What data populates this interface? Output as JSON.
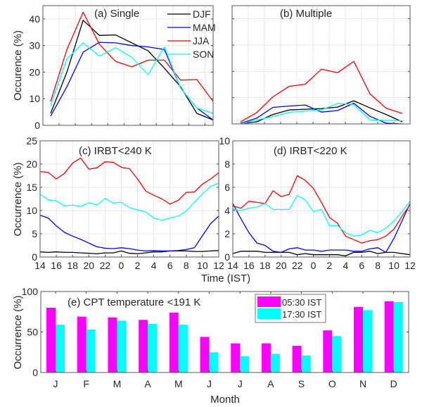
{
  "figure": {
    "xlabel_time": "Time (IST)",
    "xlabel_month": "Month"
  },
  "chart_data": [
    {
      "id": "a",
      "type": "line",
      "title": "(a) Single",
      "ylabel": "Occurence (%)",
      "ylim": [
        0,
        45
      ],
      "yticks": [
        0,
        10,
        20,
        30,
        40
      ],
      "ytick_labels": [
        "0",
        "10",
        "20",
        "30",
        "40"
      ],
      "grid": true,
      "legend": "top-right",
      "x": [
        1,
        2,
        3,
        4,
        5,
        6,
        7,
        8,
        9,
        10,
        11
      ],
      "series": [
        {
          "name": "DJF",
          "color": "#000000",
          "values": [
            4.5,
            20,
            39.5,
            33.8,
            34,
            31,
            28,
            21.5,
            14.5,
            4.5,
            2
          ]
        },
        {
          "name": "MAM",
          "color": "#0000ff",
          "values": [
            3.5,
            14.5,
            27.5,
            31.2,
            31,
            30,
            29.5,
            28.5,
            14,
            6.5,
            2
          ]
        },
        {
          "name": "JJA",
          "color": "#ff0000",
          "values": [
            9,
            28.5,
            42.5,
            30.5,
            24,
            22,
            24.5,
            24.5,
            17,
            17.2,
            9
          ]
        },
        {
          "name": "SON",
          "color": "#00ffff",
          "values": [
            7.5,
            25,
            31,
            26,
            29.2,
            25.5,
            19,
            29.5,
            14,
            6.5,
            4.5
          ]
        }
      ]
    },
    {
      "id": "b",
      "type": "line",
      "title": "(b) Multiple",
      "ylabel": "",
      "ylim": [
        0,
        45
      ],
      "grid": true,
      "x": [
        1,
        2,
        3,
        4,
        5,
        6,
        7,
        8,
        9,
        10,
        11
      ],
      "series": [
        {
          "name": "DJF",
          "color": "#000000",
          "values": [
            0.1,
            0.8,
            3.6,
            5.3,
            5.6,
            5.8,
            6.4,
            8.8,
            6.1,
            3.6,
            0.8
          ]
        },
        {
          "name": "MAM",
          "color": "#0000ff",
          "values": [
            0.2,
            2.2,
            6.3,
            6.8,
            7.2,
            4.5,
            5.1,
            7.9,
            2.9,
            0.3,
            0
          ]
        },
        {
          "name": "JJA",
          "color": "#ff0000",
          "values": [
            0.8,
            4.3,
            10.3,
            14.3,
            15.1,
            20.8,
            19.5,
            23.8,
            11.4,
            6,
            4
          ]
        },
        {
          "name": "SON",
          "color": "#00ffff",
          "values": [
            0,
            1.5,
            2.8,
            4.4,
            4.9,
            5.3,
            7.8,
            7.4,
            1.5,
            1.4,
            1.2
          ]
        }
      ]
    },
    {
      "id": "c",
      "type": "line",
      "title": "(c) IRBT<240 K",
      "ylabel": "Occurrence (%)",
      "ylim": [
        0,
        25
      ],
      "yticks": [
        0,
        5,
        10,
        15,
        20,
        25
      ],
      "ytick_labels": [
        "0",
        "5",
        "10",
        "15",
        "20",
        "25"
      ],
      "xtick_labels": [
        "14",
        "16",
        "18",
        "20",
        "22",
        "0",
        "2",
        "4",
        "6",
        "8",
        "10",
        "12"
      ],
      "grid": true,
      "x_hours_from_14": [
        0,
        1,
        2,
        3,
        4,
        5,
        6,
        7,
        8,
        9,
        10,
        11,
        12,
        13,
        14,
        15,
        16,
        17,
        18,
        19,
        20,
        21,
        22
      ],
      "series": [
        {
          "name": "DJF",
          "color": "#000000",
          "values": [
            1.1,
            1,
            1.1,
            1,
            1,
            0.9,
            0.8,
            0.7,
            0.9,
            0.9,
            1.3,
            0.8,
            0.7,
            0.9,
            1.1,
            1.1,
            1.3,
            1.3,
            1.3,
            1.2,
            1.2,
            1.3,
            1.4
          ]
        },
        {
          "name": "MAM",
          "color": "#0000ff",
          "values": [
            9,
            8.4,
            6.7,
            5.3,
            4.5,
            3.8,
            3,
            2.2,
            1.9,
            1.8,
            2,
            1.8,
            1.5,
            1.3,
            1.4,
            1.3,
            1.3,
            1.4,
            1.6,
            2,
            4.6,
            7.2,
            8.8
          ]
        },
        {
          "name": "JJA",
          "color": "#ff0000",
          "values": [
            18.4,
            18.2,
            16.8,
            18,
            20.2,
            21.3,
            18.9,
            19.2,
            20.5,
            20.4,
            19.3,
            19,
            16.8,
            14.2,
            13.3,
            12.5,
            11.4,
            12.2,
            13.9,
            14,
            15.7,
            16.8,
            18.1
          ]
        },
        {
          "name": "SON",
          "color": "#00ffff",
          "values": [
            13.5,
            12.3,
            12.1,
            11,
            11.2,
            10.9,
            11.7,
            11.2,
            12.6,
            11.6,
            11.8,
            10.6,
            10.1,
            9.7,
            8.4,
            7.9,
            8.4,
            8.8,
            9.9,
            11.8,
            13.6,
            15.2,
            15.9
          ]
        }
      ]
    },
    {
      "id": "d",
      "type": "line",
      "title": "(d) IRBT<220 K",
      "ylabel": "",
      "ylim": [
        0,
        10
      ],
      "yticks": [
        0,
        2,
        4,
        6,
        8,
        10
      ],
      "ytick_labels": [
        "0",
        "2",
        "4",
        "6",
        "8",
        "10"
      ],
      "xtick_labels": [
        "14",
        "16",
        "18",
        "20",
        "22",
        "0",
        "2",
        "4",
        "6",
        "8",
        "10",
        "12"
      ],
      "grid": true,
      "x_hours_from_14": [
        0,
        1,
        2,
        3,
        4,
        5,
        6,
        7,
        8,
        9,
        10,
        11,
        12,
        13,
        14,
        15,
        16,
        17,
        18,
        19,
        20,
        21,
        22
      ],
      "series": [
        {
          "name": "DJF",
          "color": "#000000",
          "values": [
            0.3,
            0.5,
            0.5,
            0.5,
            0.4,
            0.4,
            0.4,
            0.4,
            0.2,
            0.3,
            0.2,
            0.2,
            0.2,
            0.2,
            0.1,
            0.4,
            0.4,
            0.5,
            0.3,
            0.4,
            0.4,
            0.3,
            0.2
          ]
        },
        {
          "name": "MAM",
          "color": "#0000ff",
          "values": [
            4.6,
            3.3,
            2.1,
            1.2,
            1,
            0.5,
            0.4,
            0.7,
            0.8,
            0.6,
            0.6,
            0.5,
            0.6,
            0.6,
            0.6,
            0.5,
            0.5,
            0.7,
            0.8,
            0.4,
            1.6,
            3.1,
            4.6
          ]
        },
        {
          "name": "JJA",
          "color": "#ff0000",
          "values": [
            4.4,
            4.2,
            4.8,
            4.7,
            4.6,
            5.7,
            5.2,
            5.4,
            7,
            6.6,
            5.9,
            4.7,
            3.4,
            2.9,
            1.8,
            1.5,
            1.2,
            1.4,
            1.5,
            1.8,
            2.4,
            3.5,
            4.5
          ]
        },
        {
          "name": "SON",
          "color": "#00ffff",
          "values": [
            4.1,
            4,
            4.2,
            4.3,
            4.6,
            4.1,
            4.1,
            4.1,
            5.3,
            4.9,
            3.9,
            4.1,
            2.7,
            2.7,
            2.1,
            1.8,
            1.9,
            2.3,
            2.1,
            2.5,
            3.1,
            3.9,
            4.8
          ]
        }
      ]
    },
    {
      "id": "e",
      "type": "bar",
      "title": "(e) CPT temperature <191 K",
      "ylabel": "Occurrence (%)",
      "xlabel": "Month",
      "ylim": [
        0,
        100
      ],
      "yticks": [
        0,
        50,
        100
      ],
      "ytick_labels": [
        "0",
        "50",
        "100"
      ],
      "grid": false,
      "legend": "top-center-right",
      "categories": [
        "J",
        "F",
        "M",
        "A",
        "M",
        "J",
        "J",
        "A",
        "S",
        "O",
        "N",
        "D"
      ],
      "series": [
        {
          "name": "05:30 IST",
          "color": "#ff00ff",
          "values": [
            80,
            69,
            68,
            65,
            74,
            44,
            36,
            36,
            33,
            52,
            81,
            88
          ]
        },
        {
          "name": "17:30 IST",
          "color": "#00ffff",
          "values": [
            59,
            53,
            64,
            60,
            59,
            25,
            20,
            23,
            21,
            45,
            77,
            87
          ]
        }
      ]
    }
  ]
}
